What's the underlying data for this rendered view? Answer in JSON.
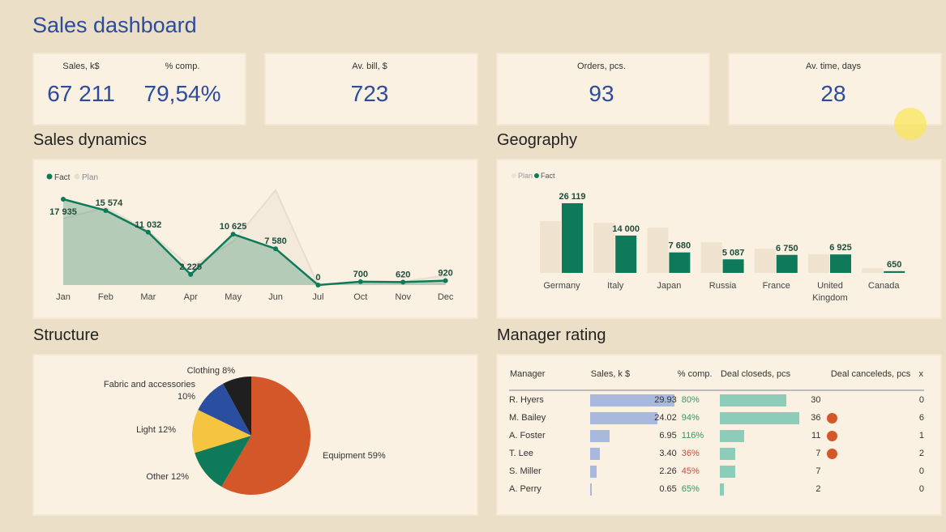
{
  "header": {
    "title": "Sales dashboard"
  },
  "kpis": {
    "sales_label": "Sales, k$",
    "sales_value": "67 211",
    "comp_label": "% comp.",
    "comp_value": "79,54%",
    "bill_label": "Av. bill, $",
    "bill_value": "723",
    "orders_label": "Orders, pcs.",
    "orders_value": "93",
    "time_label": "Av. time, days",
    "time_value": "28"
  },
  "sections": {
    "dynamics": "Sales dynamics",
    "geography": "Geography",
    "structure": "Structure",
    "managers": "Manager rating"
  },
  "chart_data": [
    {
      "type": "area",
      "title": "Sales dynamics",
      "categories": [
        "Jan",
        "Feb",
        "Mar",
        "Apr",
        "May",
        "Jun",
        "Jul",
        "Oct",
        "Nov",
        "Dec"
      ],
      "series": [
        {
          "name": "Fact",
          "values": [
            17935,
            15574,
            11032,
            2225,
            10625,
            7580,
            0,
            700,
            620,
            920
          ],
          "labels": [
            "17 935",
            "15 574",
            "11 032",
            "2 225",
            "10 625",
            "7 580",
            "0",
            "700",
            "620",
            "920"
          ],
          "color": "#0e7a5a"
        },
        {
          "name": "Plan",
          "values": [
            13900,
            16200,
            11300,
            3700,
            9100,
            19800,
            0,
            700,
            700,
            2000
          ],
          "color": "#ebe3d6"
        }
      ],
      "legend": "top-left"
    },
    {
      "type": "bar",
      "title": "Geography",
      "categories": [
        "Germany",
        "Italy",
        "Japan",
        "Russia",
        "France",
        "United Kingdom",
        "Canada"
      ],
      "series": [
        {
          "name": "Plan",
          "values": [
            19400,
            18800,
            17000,
            11500,
            9100,
            7000,
            1800
          ],
          "color": "#efe3d0"
        },
        {
          "name": "Fact",
          "values": [
            26119,
            14000,
            7680,
            5087,
            6750,
            6925,
            650
          ],
          "labels": [
            "26 119",
            "14 000",
            "7 680",
            "5 087",
            "6 750",
            "6 925",
            "650"
          ],
          "color": "#0e7a5a"
        }
      ],
      "legend": "top-left"
    },
    {
      "type": "pie",
      "title": "Structure",
      "slices": [
        {
          "label": "Equipment 59%",
          "value": 59,
          "color": "#d4572a"
        },
        {
          "label": "Other 12%",
          "value": 12,
          "color": "#0e7a5a"
        },
        {
          "label": "Light 12%",
          "value": 12,
          "color": "#f5c542"
        },
        {
          "label": "Fabric and accessories 10%",
          "value": 10,
          "color": "#2a4fa0"
        },
        {
          "label": "Clothing 8%",
          "value": 8,
          "color": "#1f1f1f"
        }
      ]
    }
  ],
  "managers": {
    "headers": [
      "Manager",
      "Sales, k $",
      "% comp.",
      "Deal closeds, pcs",
      "Deal canceleds, pcs",
      "x"
    ],
    "rows": [
      {
        "name": "R. Hyers",
        "sales": "29.93",
        "sales_v": 29.93,
        "comp": "80%",
        "good": true,
        "closed": "30",
        "closed_v": 30,
        "flag": false,
        "canceled": "0"
      },
      {
        "name": "M. Bailey",
        "sales": "24.02",
        "sales_v": 24.02,
        "comp": "94%",
        "good": true,
        "closed": "36",
        "closed_v": 36,
        "flag": true,
        "canceled": "6"
      },
      {
        "name": "A. Foster",
        "sales": "6.95",
        "sales_v": 6.95,
        "comp": "116%",
        "good": true,
        "closed": "11",
        "closed_v": 11,
        "flag": true,
        "canceled": "1"
      },
      {
        "name": "T. Lee",
        "sales": "3.40",
        "sales_v": 3.4,
        "comp": "36%",
        "good": false,
        "closed": "7",
        "closed_v": 7,
        "flag": true,
        "canceled": "2"
      },
      {
        "name": "S. Miller",
        "sales": "2.26",
        "sales_v": 2.26,
        "comp": "45%",
        "good": false,
        "closed": "7",
        "closed_v": 7,
        "flag": false,
        "canceled": "0"
      },
      {
        "name": "A. Perry",
        "sales": "0.65",
        "sales_v": 0.65,
        "comp": "65%",
        "good": true,
        "closed": "2",
        "closed_v": 2,
        "flag": false,
        "canceled": "0"
      }
    ]
  }
}
